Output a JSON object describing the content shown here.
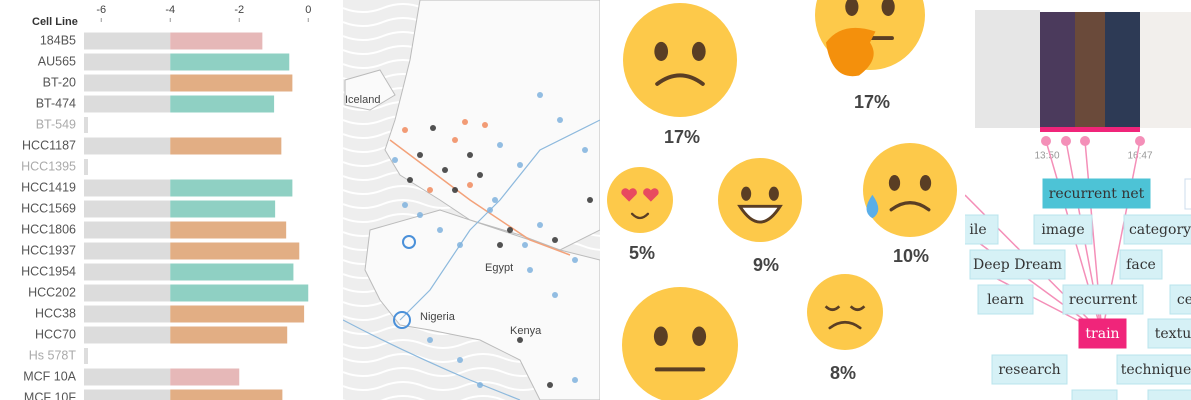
{
  "chart_data": {
    "type": "bar",
    "orientation": "horizontal",
    "header": "Cell Line",
    "categories": [
      "184B5",
      "AU565",
      "BT-20",
      "BT-474",
      "BT-549",
      "HCC1187",
      "HCC1395",
      "HCC1419",
      "HCC1569",
      "HCC1806",
      "HCC1937",
      "HCC1954",
      "HCC202",
      "HCC38",
      "HCC70",
      "Hs 578T",
      "MCF 10A",
      "MCF 10F"
    ],
    "values": [
      -1.33,
      -0.55,
      -0.46,
      -0.99,
      null,
      -0.78,
      null,
      -0.46,
      -0.96,
      -0.64,
      -0.26,
      -0.43,
      0,
      -0.12,
      -0.61,
      null,
      -2.0,
      -0.75
    ],
    "colors": [
      "#e6b8b8",
      "#8fd0c3",
      "#e2ae84",
      "#8fd0c3",
      "#dddddd",
      "#e2ae84",
      "#dddddd",
      "#8fd0c3",
      "#8fd0c3",
      "#e2ae84",
      "#e2ae84",
      "#8fd0c3",
      "#8fd0c3",
      "#e2ae84",
      "#e2ae84",
      "#dddddd",
      "#e6b8b8",
      "#e2ae84"
    ],
    "threshold": -4,
    "xlim": [
      -6.5,
      0.3
    ],
    "xticks": [
      -6,
      -4,
      -2,
      0
    ]
  },
  "map": {
    "labels": [
      "Iceland",
      "Egypt",
      "Nigeria",
      "Kenya"
    ]
  },
  "emoji": {
    "labels": [
      "17%",
      "17%",
      "5%",
      "9%",
      "10%",
      "8%"
    ]
  },
  "timeline": {
    "times": [
      "13:50",
      "16:47"
    ]
  },
  "tags": [
    "recurrent net",
    "image",
    "category",
    "ile",
    "Deep Dream",
    "face",
    "learn",
    "recurrent",
    "ce",
    "train",
    "textu",
    "research",
    "technique"
  ]
}
